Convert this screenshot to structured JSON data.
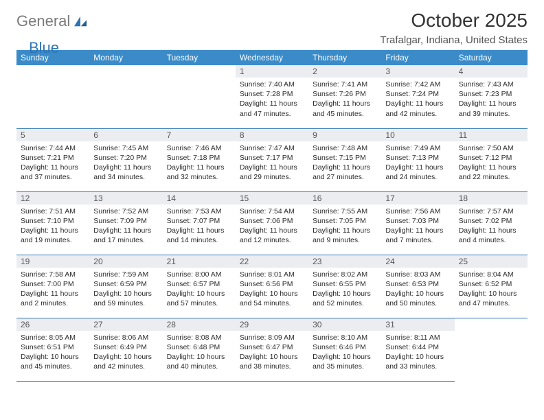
{
  "brand": {
    "text_a": "General",
    "text_b": "Blue"
  },
  "title": "October 2025",
  "location": "Trafalgar, Indiana, United States",
  "colors": {
    "header_bg": "#3b8bc8",
    "header_text": "#ffffff",
    "daynum_bg": "#ebedf0",
    "rule": "#2e75b6",
    "logo_gray": "#7a7a7a",
    "logo_blue": "#2e75b6"
  },
  "fonts": {
    "title_size_pt": 21,
    "location_size_pt": 11,
    "dayhdr_size_pt": 9,
    "body_size_pt": 8
  },
  "weekdays": [
    "Sunday",
    "Monday",
    "Tuesday",
    "Wednesday",
    "Thursday",
    "Friday",
    "Saturday"
  ],
  "weeks": [
    [
      null,
      null,
      null,
      {
        "n": "1",
        "sunrise": "7:40 AM",
        "sunset": "7:28 PM",
        "daylight": "11 hours and 47 minutes."
      },
      {
        "n": "2",
        "sunrise": "7:41 AM",
        "sunset": "7:26 PM",
        "daylight": "11 hours and 45 minutes."
      },
      {
        "n": "3",
        "sunrise": "7:42 AM",
        "sunset": "7:24 PM",
        "daylight": "11 hours and 42 minutes."
      },
      {
        "n": "4",
        "sunrise": "7:43 AM",
        "sunset": "7:23 PM",
        "daylight": "11 hours and 39 minutes."
      }
    ],
    [
      {
        "n": "5",
        "sunrise": "7:44 AM",
        "sunset": "7:21 PM",
        "daylight": "11 hours and 37 minutes."
      },
      {
        "n": "6",
        "sunrise": "7:45 AM",
        "sunset": "7:20 PM",
        "daylight": "11 hours and 34 minutes."
      },
      {
        "n": "7",
        "sunrise": "7:46 AM",
        "sunset": "7:18 PM",
        "daylight": "11 hours and 32 minutes."
      },
      {
        "n": "8",
        "sunrise": "7:47 AM",
        "sunset": "7:17 PM",
        "daylight": "11 hours and 29 minutes."
      },
      {
        "n": "9",
        "sunrise": "7:48 AM",
        "sunset": "7:15 PM",
        "daylight": "11 hours and 27 minutes."
      },
      {
        "n": "10",
        "sunrise": "7:49 AM",
        "sunset": "7:13 PM",
        "daylight": "11 hours and 24 minutes."
      },
      {
        "n": "11",
        "sunrise": "7:50 AM",
        "sunset": "7:12 PM",
        "daylight": "11 hours and 22 minutes."
      }
    ],
    [
      {
        "n": "12",
        "sunrise": "7:51 AM",
        "sunset": "7:10 PM",
        "daylight": "11 hours and 19 minutes."
      },
      {
        "n": "13",
        "sunrise": "7:52 AM",
        "sunset": "7:09 PM",
        "daylight": "11 hours and 17 minutes."
      },
      {
        "n": "14",
        "sunrise": "7:53 AM",
        "sunset": "7:07 PM",
        "daylight": "11 hours and 14 minutes."
      },
      {
        "n": "15",
        "sunrise": "7:54 AM",
        "sunset": "7:06 PM",
        "daylight": "11 hours and 12 minutes."
      },
      {
        "n": "16",
        "sunrise": "7:55 AM",
        "sunset": "7:05 PM",
        "daylight": "11 hours and 9 minutes."
      },
      {
        "n": "17",
        "sunrise": "7:56 AM",
        "sunset": "7:03 PM",
        "daylight": "11 hours and 7 minutes."
      },
      {
        "n": "18",
        "sunrise": "7:57 AM",
        "sunset": "7:02 PM",
        "daylight": "11 hours and 4 minutes."
      }
    ],
    [
      {
        "n": "19",
        "sunrise": "7:58 AM",
        "sunset": "7:00 PM",
        "daylight": "11 hours and 2 minutes."
      },
      {
        "n": "20",
        "sunrise": "7:59 AM",
        "sunset": "6:59 PM",
        "daylight": "10 hours and 59 minutes."
      },
      {
        "n": "21",
        "sunrise": "8:00 AM",
        "sunset": "6:57 PM",
        "daylight": "10 hours and 57 minutes."
      },
      {
        "n": "22",
        "sunrise": "8:01 AM",
        "sunset": "6:56 PM",
        "daylight": "10 hours and 54 minutes."
      },
      {
        "n": "23",
        "sunrise": "8:02 AM",
        "sunset": "6:55 PM",
        "daylight": "10 hours and 52 minutes."
      },
      {
        "n": "24",
        "sunrise": "8:03 AM",
        "sunset": "6:53 PM",
        "daylight": "10 hours and 50 minutes."
      },
      {
        "n": "25",
        "sunrise": "8:04 AM",
        "sunset": "6:52 PM",
        "daylight": "10 hours and 47 minutes."
      }
    ],
    [
      {
        "n": "26",
        "sunrise": "8:05 AM",
        "sunset": "6:51 PM",
        "daylight": "10 hours and 45 minutes."
      },
      {
        "n": "27",
        "sunrise": "8:06 AM",
        "sunset": "6:49 PM",
        "daylight": "10 hours and 42 minutes."
      },
      {
        "n": "28",
        "sunrise": "8:08 AM",
        "sunset": "6:48 PM",
        "daylight": "10 hours and 40 minutes."
      },
      {
        "n": "29",
        "sunrise": "8:09 AM",
        "sunset": "6:47 PM",
        "daylight": "10 hours and 38 minutes."
      },
      {
        "n": "30",
        "sunrise": "8:10 AM",
        "sunset": "6:46 PM",
        "daylight": "10 hours and 35 minutes."
      },
      {
        "n": "31",
        "sunrise": "8:11 AM",
        "sunset": "6:44 PM",
        "daylight": "10 hours and 33 minutes."
      },
      null
    ]
  ]
}
